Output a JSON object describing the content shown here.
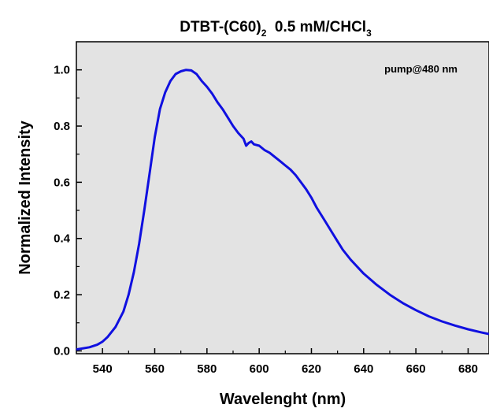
{
  "chart_data": {
    "type": "line",
    "title_main": "DTBT-(C60)",
    "title_sub1": "2",
    "title_mid": "  0.5 mM/CHCl",
    "title_sub2": "3",
    "xlabel": "Wavelenght (nm)",
    "ylabel": "Normalized Intensity",
    "annotation": "pump@480 nm",
    "xlim": [
      530,
      688
    ],
    "ylim": [
      -0.01,
      1.1
    ],
    "xticks": [
      540,
      560,
      580,
      600,
      620,
      640,
      660,
      680
    ],
    "yticks": [
      "0.0",
      "0.2",
      "0.4",
      "0.6",
      "0.8",
      "1.0"
    ],
    "grid": false,
    "background_color": "#e3e3e3",
    "line_color": "#1010e0",
    "series": [
      {
        "x": [
          530,
          535,
          538,
          540,
          542,
          545,
          548,
          550,
          552,
          554,
          556,
          558,
          560,
          562,
          564,
          566,
          568,
          570,
          572,
          574,
          576,
          578,
          580,
          582,
          584,
          586,
          588,
          590,
          592,
          594,
          595,
          596,
          597,
          598,
          600,
          602,
          604,
          606,
          608,
          610,
          612,
          614,
          616,
          618,
          620,
          622,
          625,
          628,
          630,
          632,
          635,
          640,
          645,
          650,
          655,
          660,
          665,
          670,
          675,
          680,
          685,
          688
        ],
        "y": [
          0.005,
          0.013,
          0.022,
          0.033,
          0.05,
          0.085,
          0.14,
          0.2,
          0.28,
          0.38,
          0.5,
          0.63,
          0.76,
          0.86,
          0.92,
          0.96,
          0.985,
          0.995,
          1.0,
          0.998,
          0.985,
          0.96,
          0.94,
          0.915,
          0.885,
          0.86,
          0.83,
          0.8,
          0.775,
          0.755,
          0.73,
          0.74,
          0.745,
          0.735,
          0.73,
          0.715,
          0.705,
          0.69,
          0.675,
          0.66,
          0.645,
          0.625,
          0.6,
          0.575,
          0.545,
          0.51,
          0.465,
          0.42,
          0.39,
          0.36,
          0.325,
          0.275,
          0.235,
          0.2,
          0.17,
          0.145,
          0.123,
          0.105,
          0.09,
          0.077,
          0.066,
          0.06
        ]
      }
    ]
  }
}
